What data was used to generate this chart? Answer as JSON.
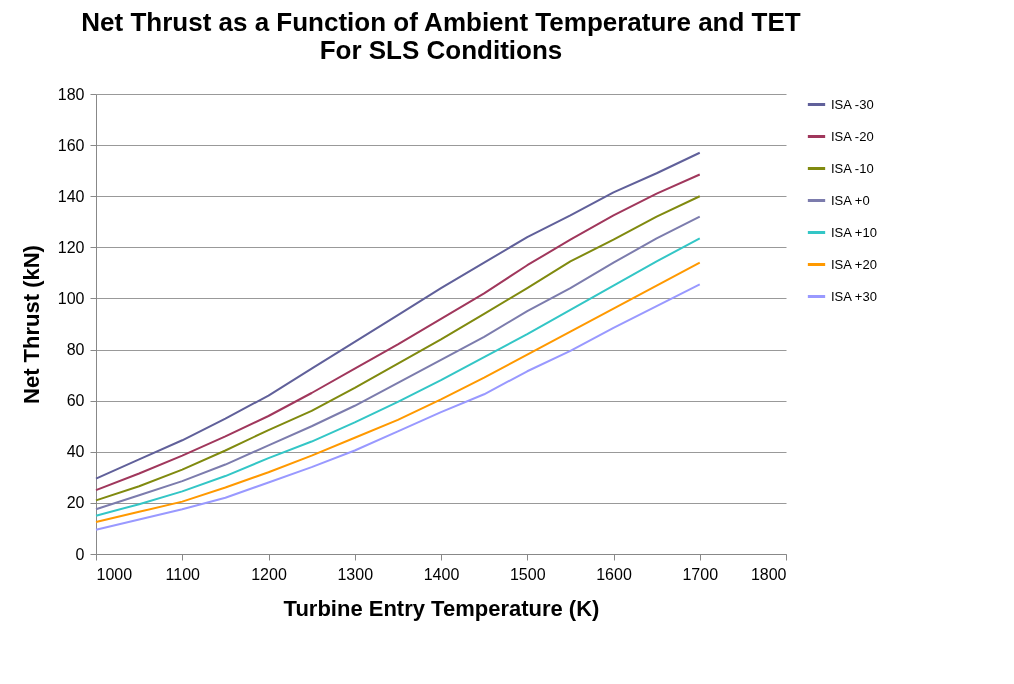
{
  "chart_data": {
    "type": "line",
    "title": [
      "Net Thrust as a Function of Ambient Temperature and TET",
      "For SLS Conditions"
    ],
    "xlabel": "Turbine Entry Temperature (K)",
    "ylabel": "Net Thrust (kN)",
    "x": [
      1000,
      1050,
      1100,
      1150,
      1200,
      1250,
      1300,
      1350,
      1400,
      1450,
      1500,
      1550,
      1600,
      1650,
      1700
    ],
    "xlim": [
      1000,
      1800
    ],
    "xticks": [
      1000,
      1100,
      1200,
      1300,
      1400,
      1500,
      1600,
      1700,
      1800
    ],
    "ylim": [
      0,
      180
    ],
    "yticks": [
      0,
      20,
      40,
      60,
      80,
      100,
      120,
      140,
      160,
      180
    ],
    "grid": "y",
    "legend": "right",
    "marker": "none",
    "line_style": "solid",
    "series": [
      {
        "name": "ISA -30",
        "color": "#60609a",
        "values": [
          29.5,
          37,
          44.5,
          53,
          62,
          72.5,
          83,
          93.5,
          104,
          114,
          124,
          132.5,
          141.5,
          149,
          157
        ]
      },
      {
        "name": "ISA -20",
        "color": "#a0375c",
        "values": [
          25,
          31.5,
          38.5,
          46,
          54,
          63,
          72.5,
          82,
          92,
          102,
          113,
          123,
          132.5,
          141,
          148.5
        ]
      },
      {
        "name": "ISA -10",
        "color": "#808a0f",
        "values": [
          21,
          26.5,
          33,
          40.5,
          48.5,
          56,
          65,
          74.5,
          84,
          94,
          104,
          114.5,
          123,
          132,
          140
        ]
      },
      {
        "name": "ISA +0",
        "color": "#7c7cad",
        "values": [
          17.5,
          23,
          28.5,
          35,
          42.5,
          50,
          58,
          67,
          76,
          85,
          95,
          104,
          114,
          123.5,
          132
        ]
      },
      {
        "name": "ISA +10",
        "color": "#33c6c6",
        "values": [
          15,
          19.5,
          24.5,
          30.5,
          37.5,
          44,
          51.5,
          59.5,
          68,
          77,
          86,
          95.5,
          105,
          114.5,
          123.5
        ]
      },
      {
        "name": "ISA +20",
        "color": "#ff9900",
        "values": [
          12.5,
          16.5,
          20.5,
          26,
          32,
          38.5,
          45.5,
          52.5,
          60.5,
          69,
          78,
          87,
          96,
          105,
          114
        ]
      },
      {
        "name": "ISA +30",
        "color": "#9999ff",
        "values": [
          9.5,
          13.5,
          17.5,
          22,
          28,
          34,
          40.5,
          48,
          55.5,
          62.5,
          71.5,
          79.5,
          88.5,
          97,
          105.5
        ]
      }
    ]
  }
}
